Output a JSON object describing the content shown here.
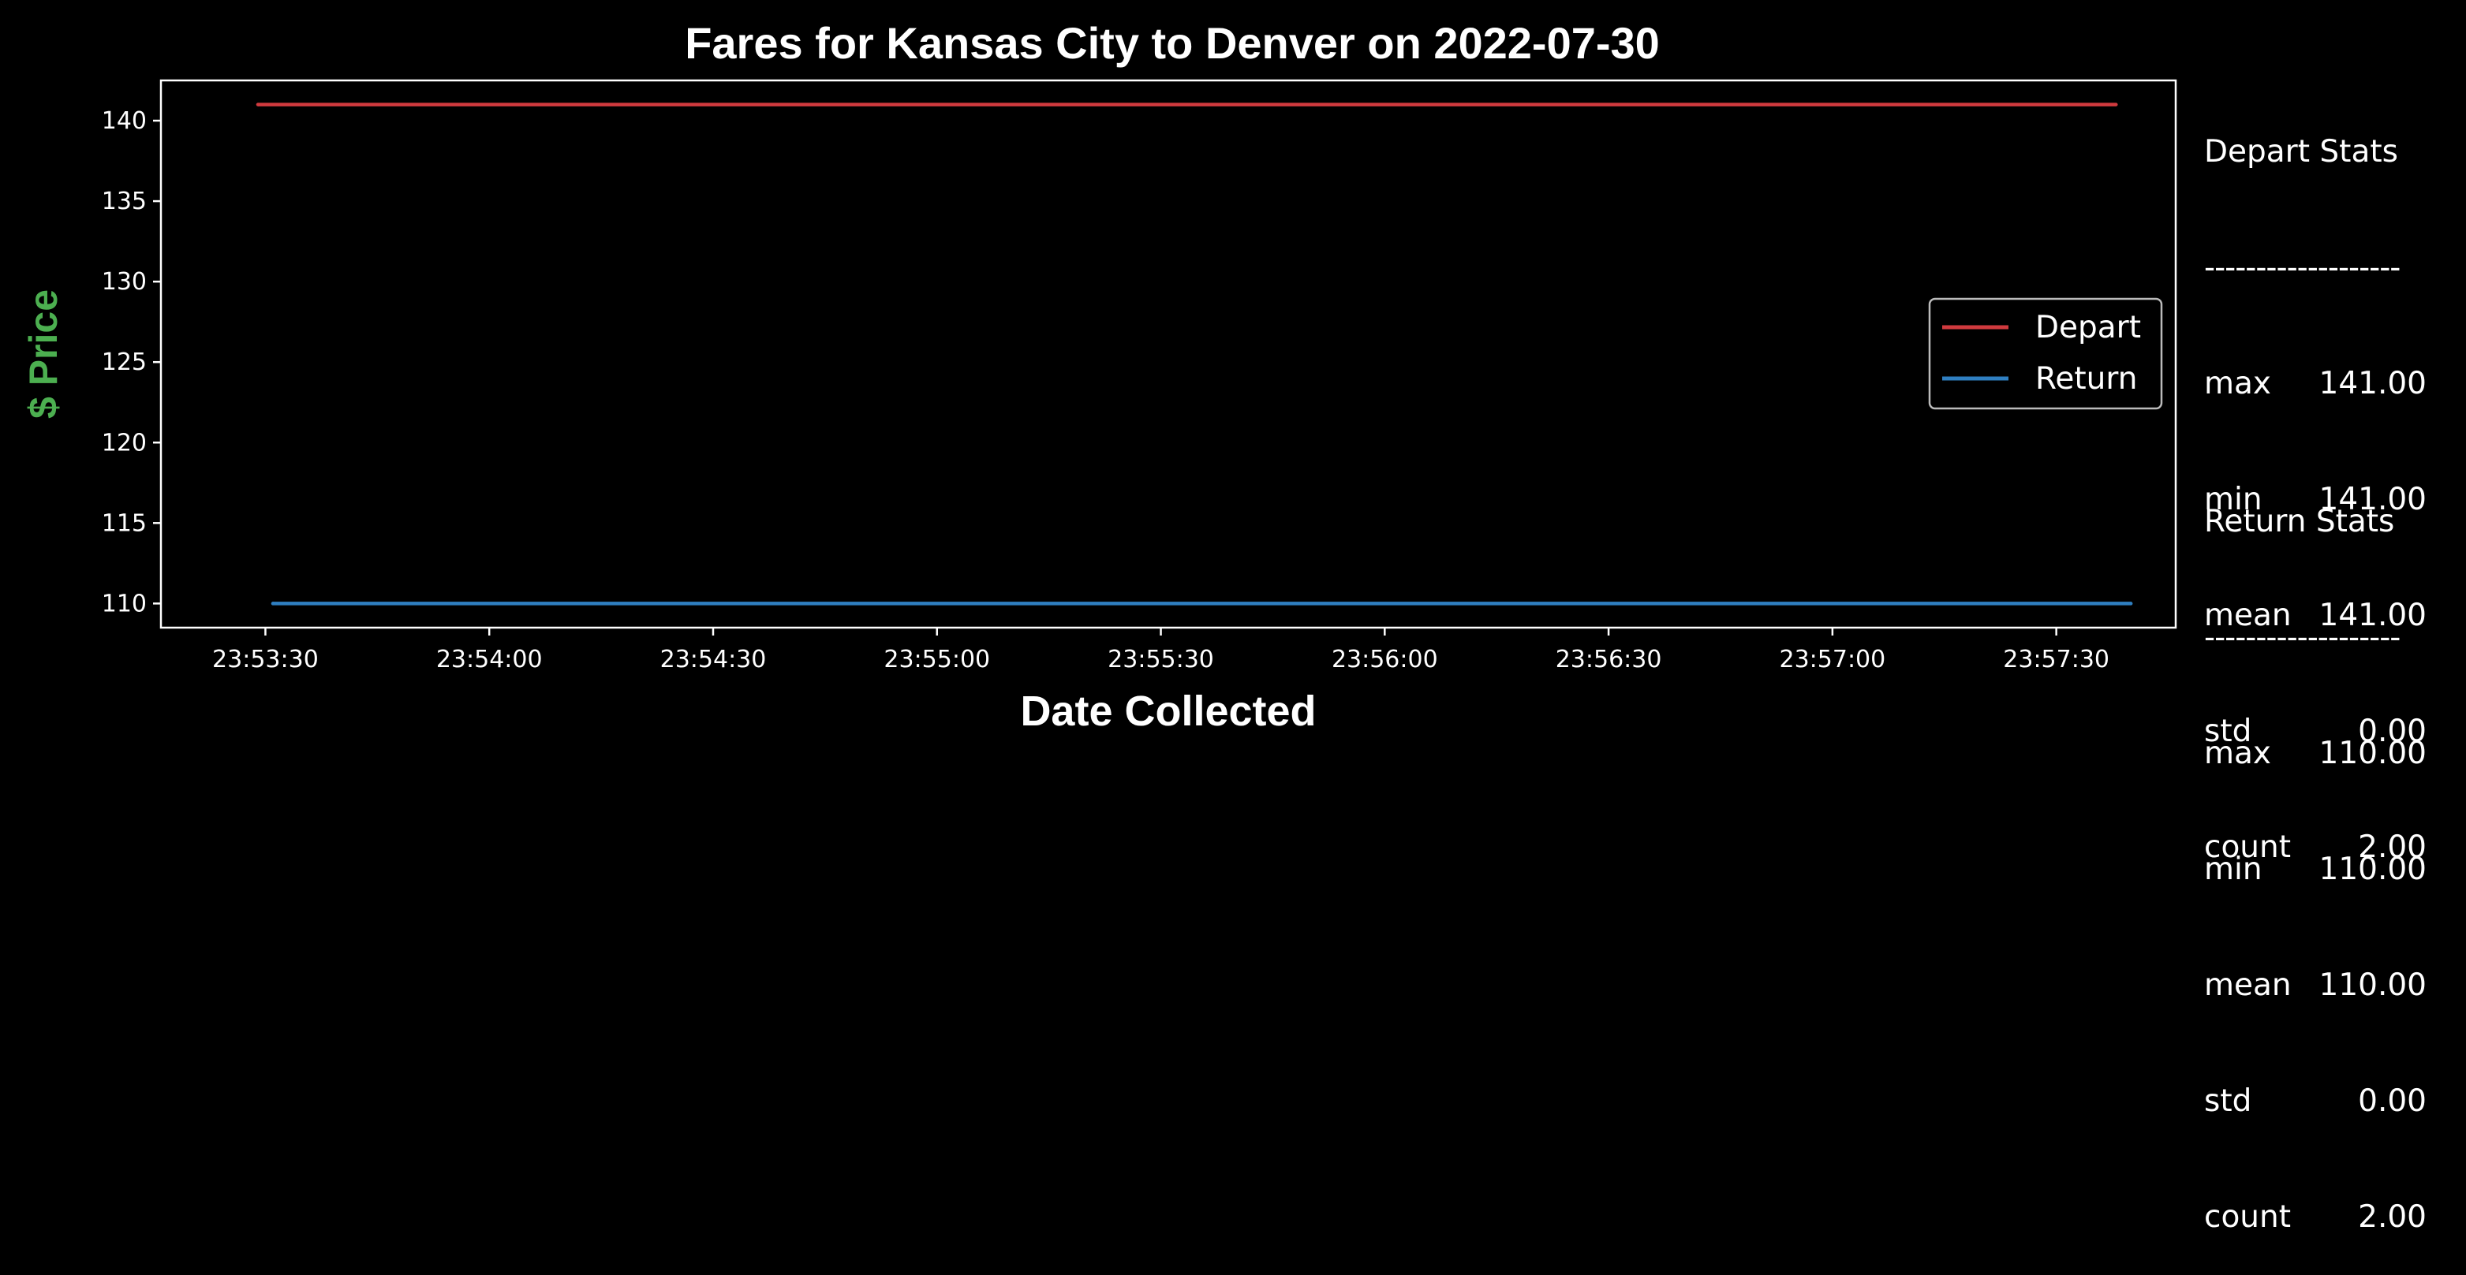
{
  "chart_data": {
    "type": "line",
    "title": "Fares for Kansas City to Denver on 2022-07-30",
    "xlabel": "Date Collected",
    "ylabel": "$ Price",
    "x_ticks": [
      "23:53:30",
      "23:54:00",
      "23:54:30",
      "23:55:00",
      "23:55:30",
      "23:56:00",
      "23:56:30",
      "23:57:00",
      "23:57:30"
    ],
    "y_ticks": [
      "110",
      "115",
      "120",
      "125",
      "130",
      "135",
      "140"
    ],
    "ylim": [
      108.5,
      142.5
    ],
    "xlim": [
      "23:53:16",
      "23:57:46"
    ],
    "grid": false,
    "legend_position": "center-right",
    "series": [
      {
        "name": "Depart",
        "color": "#d03a3e",
        "x": [
          "23:53:29",
          "23:57:38"
        ],
        "values": [
          141.0,
          141.0
        ]
      },
      {
        "name": "Return",
        "color": "#2f7fc1",
        "x": [
          "23:53:31",
          "23:57:40"
        ],
        "values": [
          110.0,
          110.0
        ]
      }
    ]
  },
  "colors": {
    "background": "#000000",
    "foreground": "#ffffff",
    "ylabel": "#4caf50"
  },
  "stats": {
    "depart": {
      "heading": "Depart Stats",
      "separator": "-------------------",
      "rows": [
        {
          "k": "max",
          "v": "141.00"
        },
        {
          "k": "min",
          "v": "141.00"
        },
        {
          "k": "mean",
          "v": "141.00"
        },
        {
          "k": "std",
          "v": "0.00"
        },
        {
          "k": "count",
          "v": "2.00"
        }
      ]
    },
    "return": {
      "heading": "Return Stats",
      "separator": "-------------------",
      "rows": [
        {
          "k": "max",
          "v": "110.00"
        },
        {
          "k": "min",
          "v": "110.00"
        },
        {
          "k": "mean",
          "v": "110.00"
        },
        {
          "k": "std",
          "v": "0.00"
        },
        {
          "k": "count",
          "v": "2.00"
        }
      ]
    }
  }
}
